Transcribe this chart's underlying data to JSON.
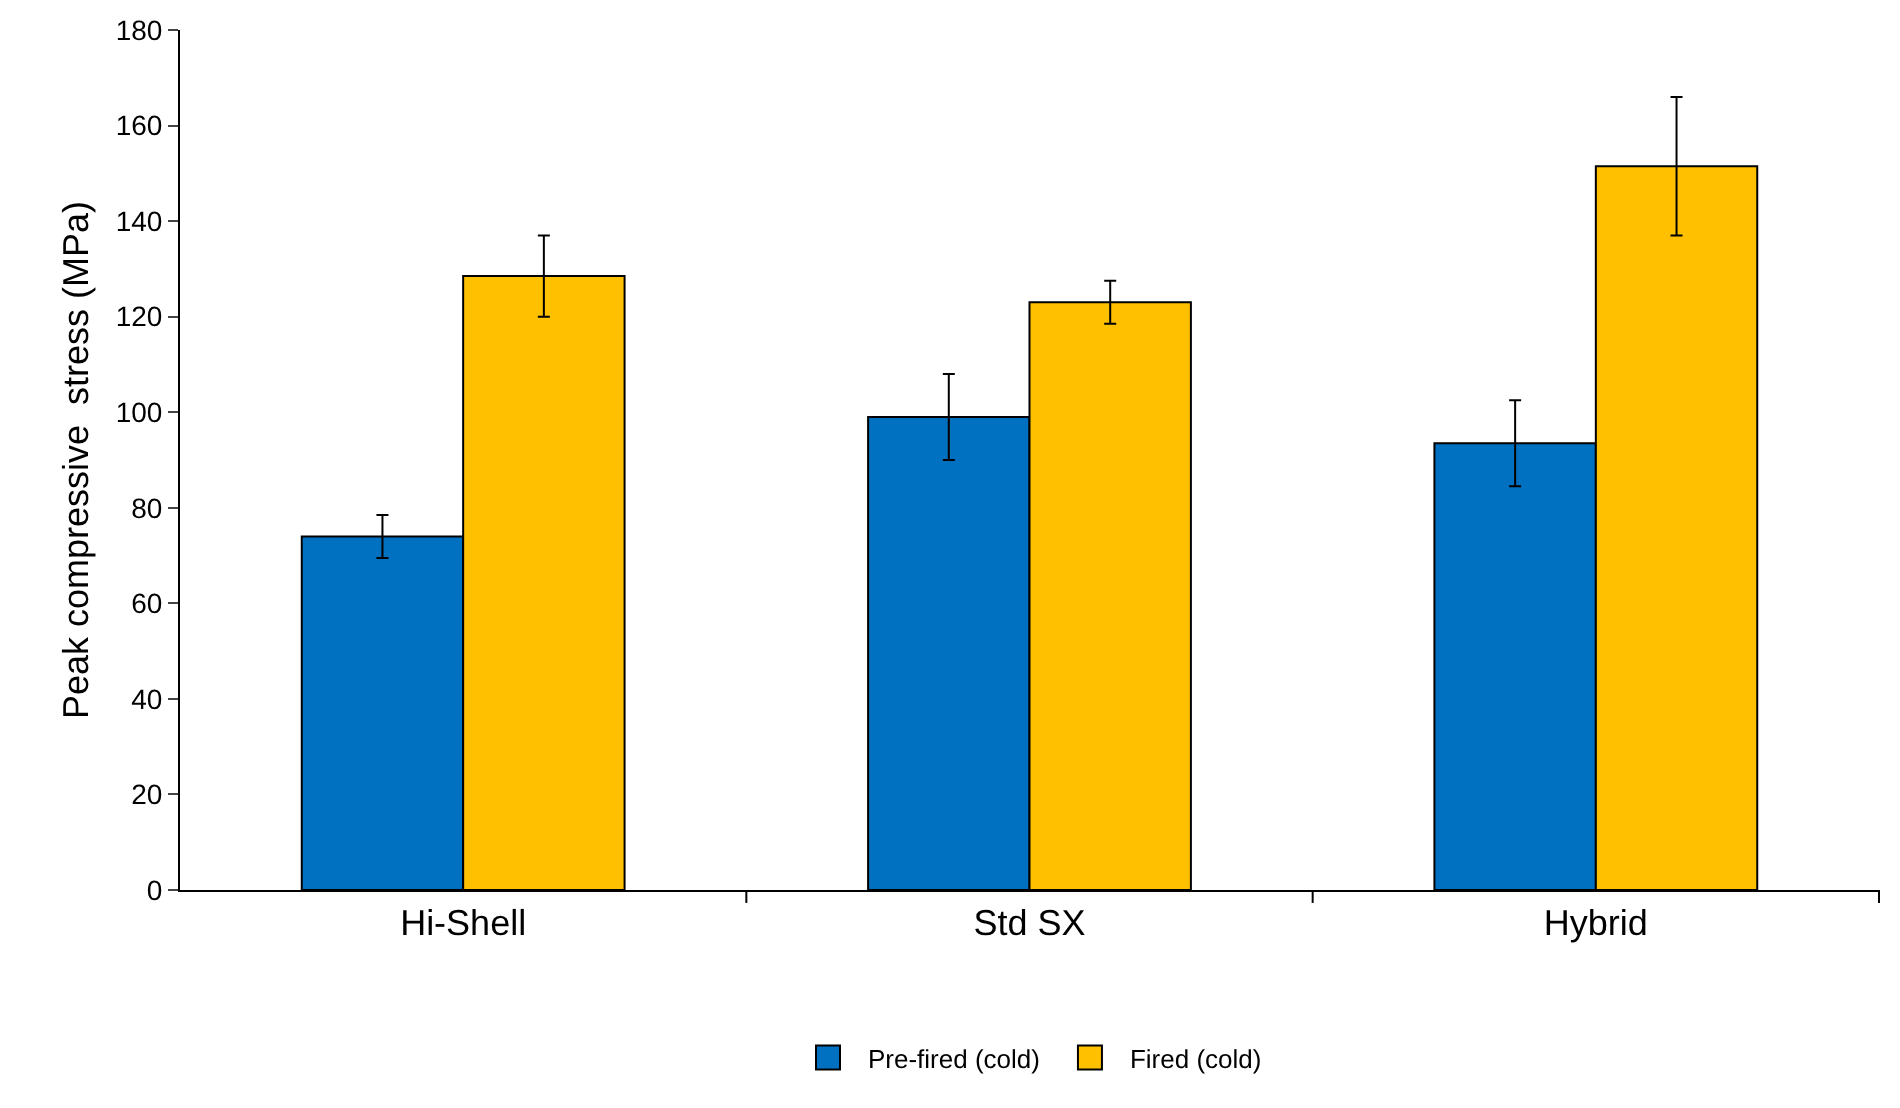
{
  "chart_data": {
    "type": "bar",
    "ylabel": "Peak compressive  stress (MPa)",
    "categories": [
      "Hi-Shell",
      "Std SX",
      "Hybrid"
    ],
    "series": [
      {
        "name": "Pre-fired (cold)",
        "color": "#0070c0",
        "values": [
          74,
          99,
          93.5
        ],
        "errors": [
          4.5,
          9,
          9
        ]
      },
      {
        "name": "Fired (cold)",
        "color": "#ffc000",
        "values": [
          128.5,
          123,
          151.5
        ],
        "errors": [
          8.5,
          4.5,
          14.5
        ]
      }
    ],
    "ylim": [
      0,
      180
    ],
    "yticks": [
      0,
      20,
      40,
      60,
      80,
      100,
      120,
      140,
      160,
      180
    ],
    "grid": false,
    "legend": "bottom"
  }
}
